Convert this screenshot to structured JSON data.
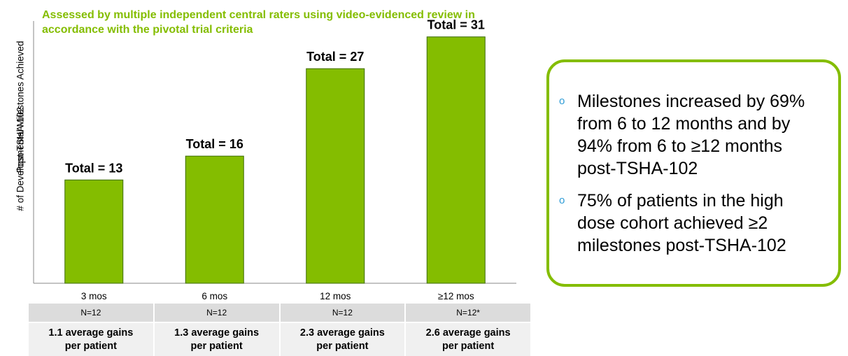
{
  "header": {
    "subtitle": "Assessed by multiple independent central raters using video-evidenced review in accordance with the pivotal trial criteria"
  },
  "chart_data": {
    "type": "bar",
    "categories": [
      "3 mos",
      "6 mos",
      "12 mos",
      "≥12 mos"
    ],
    "values": [
      13,
      16,
      27,
      31
    ],
    "data_labels": [
      "Total = 13",
      "Total = 16",
      "Total = 27",
      "Total = 31"
    ],
    "ylabel_lines": [
      "# of Developmental Milestones Achieved",
      "Post-TSHA-102"
    ],
    "ylim": [
      0,
      33
    ],
    "grid": false,
    "bar_color": "#84bd00"
  },
  "table": {
    "n_row": [
      "N=12",
      "N=12",
      "N=12",
      "N=12*"
    ],
    "gains_row": [
      [
        "1.1 average gains",
        "per patient"
      ],
      [
        "1.3 average gains",
        "per patient"
      ],
      [
        "2.3 average gains",
        "per patient"
      ],
      [
        "2.6 average gains",
        "per patient"
      ]
    ]
  },
  "callout": {
    "bullets": [
      "Milestones increased by 69% from 6 to 12 months and by 94% from 6 to ≥12 months post-TSHA-102",
      "75% of patients in the high dose cohort achieved ≥2 milestones post-TSHA-102"
    ],
    "bullet_symbol": "o",
    "accent_color": "#84bd00",
    "bullet_color": "#2e9cd6"
  }
}
